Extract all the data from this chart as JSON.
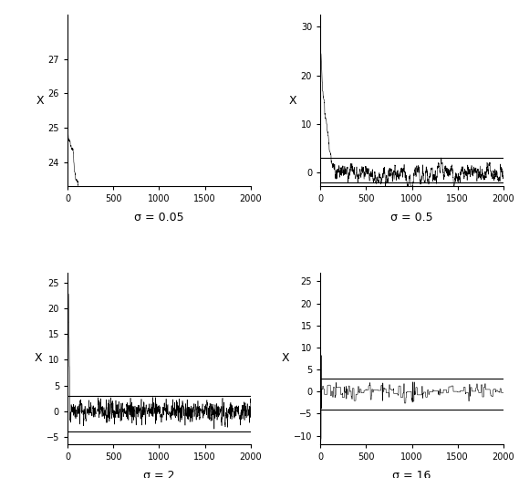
{
  "panels": [
    {
      "sigma": 0.05,
      "label": "σ = 0.05",
      "ylim": [
        23.3,
        28.3
      ],
      "yticks": [
        24,
        25,
        26,
        27
      ],
      "hlines": [],
      "seed": 101
    },
    {
      "sigma": 0.5,
      "label": "σ = 0.5",
      "ylim": [
        -2.8,
        32.5
      ],
      "yticks": [
        0,
        10,
        20,
        30
      ],
      "hlines": [
        -2.0,
        3.0
      ],
      "seed": 202
    },
    {
      "sigma": 2,
      "label": "σ = 2",
      "ylim": [
        -6.5,
        27
      ],
      "yticks": [
        -5,
        0,
        5,
        10,
        15,
        20,
        25
      ],
      "hlines": [
        -4.0,
        3.0
      ],
      "seed": 303
    },
    {
      "sigma": 16,
      "label": "σ = 16",
      "ylim": [
        -12,
        27
      ],
      "yticks": [
        -10,
        -5,
        0,
        5,
        10,
        15,
        20,
        25
      ],
      "hlines": [
        -4.0,
        3.0
      ],
      "seed": 404
    }
  ],
  "n_steps": 2000,
  "target_mean": 0.0,
  "target_sd": 1.0,
  "start_val": 25.0,
  "xlim": [
    0,
    2000
  ],
  "xticks": [
    0,
    500,
    1000,
    1500,
    2000
  ],
  "line_color": "black",
  "hline_color": "black",
  "background_color": "white",
  "ylabel": "X",
  "figsize": [
    5.69,
    5.24
  ],
  "dpi": 100
}
